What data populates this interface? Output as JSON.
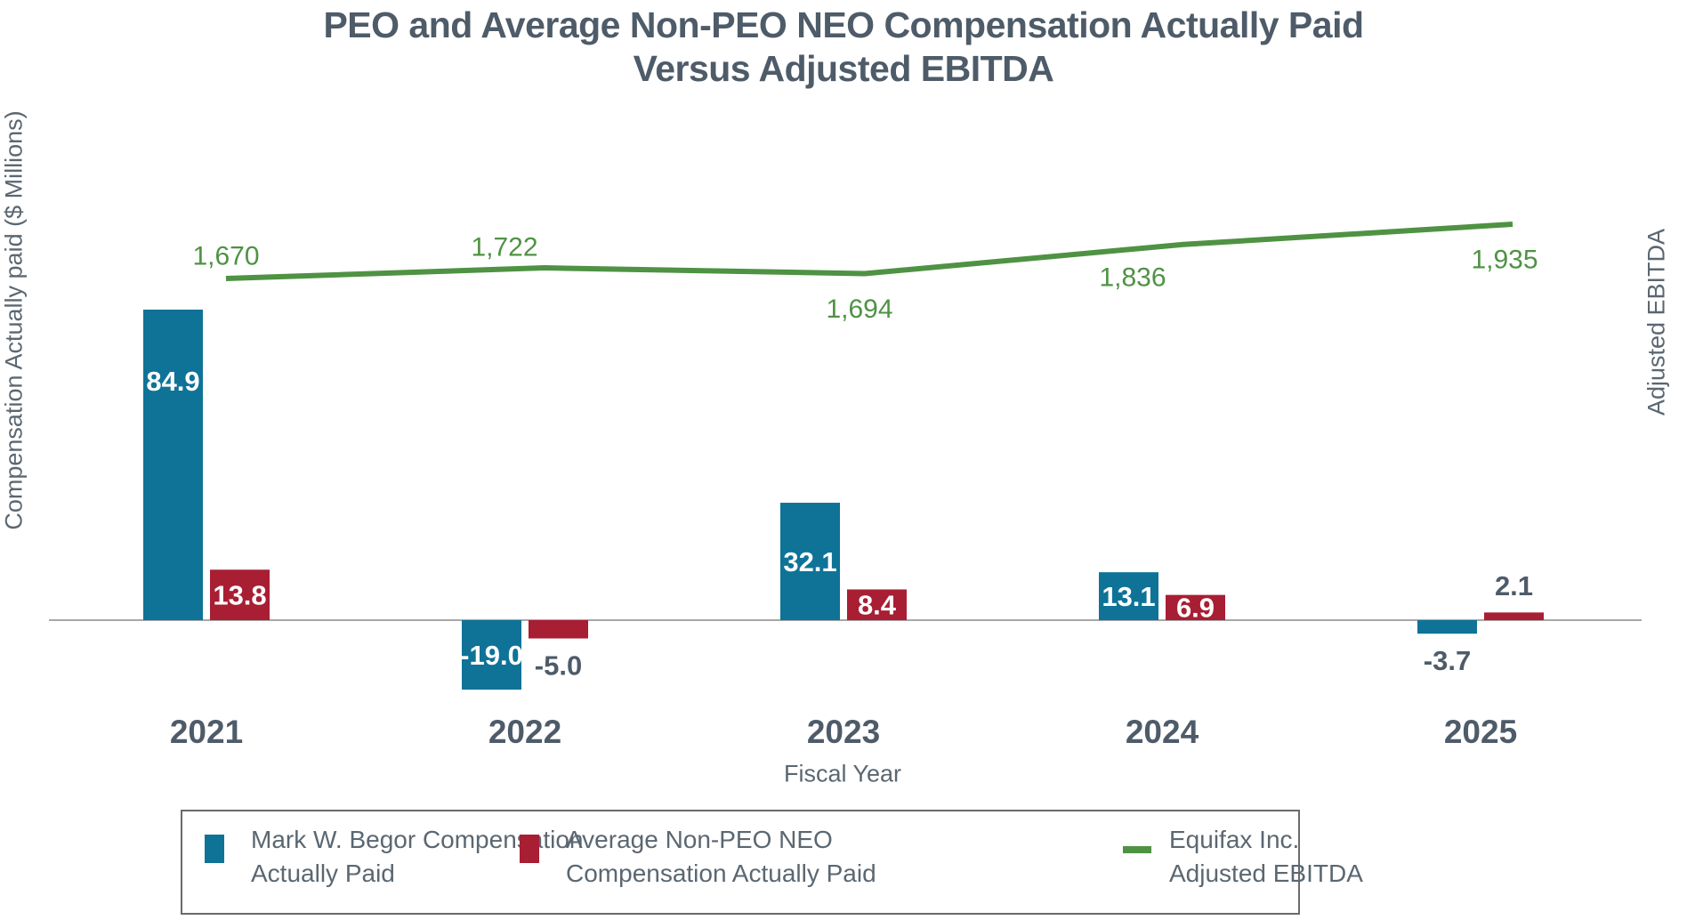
{
  "title": {
    "line1": "PEO and Average Non-PEO NEO Compensation Actually Paid",
    "line2": "Versus Adjusted EBITDA"
  },
  "axes": {
    "x_label": "Fiscal Year",
    "y_left_label": "Compensation Actually paid ($ Millions)",
    "y_right_label": "Adjusted EBITDA"
  },
  "colors": {
    "peo_bar": "#0e7397",
    "neo_bar": "#a81e33",
    "ebitda_line": "#4f9243",
    "heading_text": "#4e5b69",
    "axis_text": "#5b6771",
    "axis_line": "#a8a8a8",
    "bar_label_inside": "#ffffff"
  },
  "chart_data": {
    "type": "combo_bar_line",
    "title": "PEO and Average Non-PEO NEO Compensation Actually Paid Versus Adjusted EBITDA",
    "xlabel": "Fiscal Year",
    "ylabel_left": "Compensation Actually paid ($ Millions)",
    "ylabel_right": "Adjusted EBITDA",
    "grid": false,
    "legend_position": "bottom",
    "categories": [
      "2021",
      "2022",
      "2023",
      "2024",
      "2025"
    ],
    "series": [
      {
        "name": "Mark W. Begor Compensation Actually Paid",
        "type": "bar",
        "color": "#0e7397",
        "values": [
          84.9,
          -19.0,
          32.1,
          13.1,
          -3.7
        ],
        "labels": [
          "84.9",
          "-19.0",
          "32.1",
          "13.1",
          "-3.7"
        ]
      },
      {
        "name": "Average Non-PEO NEO Compensation Actually Paid",
        "type": "bar",
        "color": "#a81e33",
        "values": [
          13.8,
          -5.0,
          8.4,
          6.9,
          2.1
        ],
        "labels": [
          "13.8",
          "-5.0",
          "8.4",
          "6.9",
          "2.1"
        ]
      },
      {
        "name": "Equifax Inc. Adjusted EBITDA",
        "type": "line",
        "color": "#4f9243",
        "values": [
          1670,
          1722,
          1694,
          1836,
          1935
        ],
        "labels": [
          "1,670",
          "1,722",
          "1,694",
          "1,836",
          "1,935"
        ]
      }
    ]
  },
  "legend": {
    "items": [
      {
        "line1": "Mark W. Begor Compensation",
        "line2": "Actually Paid",
        "swatch": "bar",
        "color": "#0e7397"
      },
      {
        "line1": "Average Non-PEO NEO",
        "line2": "Compensation Actually Paid",
        "swatch": "bar",
        "color": "#a81e33"
      },
      {
        "line1": "Equifax Inc.",
        "line2": "Adjusted EBITDA",
        "swatch": "line",
        "color": "#4f9243"
      }
    ]
  }
}
